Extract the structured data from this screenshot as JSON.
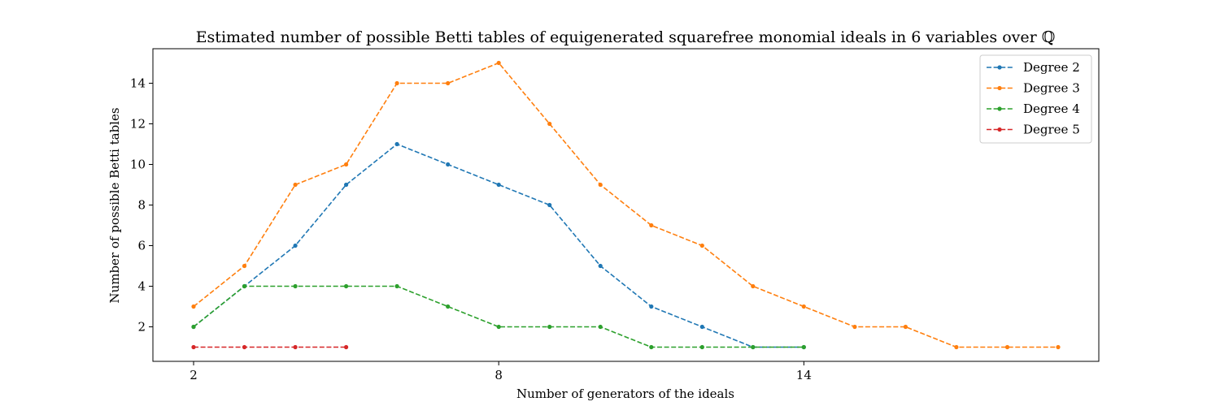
{
  "chart_data": {
    "type": "line",
    "title": "Estimated number of possible Betti tables of equigenerated squarefree monomial ideals in 6 variables over ℚ",
    "xlabel": "Number of generators of the ideals",
    "ylabel": "Number of possible Betti tables",
    "xlim": [
      1.2,
      19.8
    ],
    "ylim": [
      0.3,
      15.7
    ],
    "xticks": [
      2,
      8,
      14
    ],
    "yticks": [
      2,
      4,
      6,
      8,
      10,
      12,
      14
    ],
    "grid": false,
    "legend_position": "top-right",
    "line_style": "dashed",
    "series": [
      {
        "name": "Degree 2",
        "color": "#1f77b4",
        "x": [
          2,
          3,
          4,
          5,
          6,
          7,
          8,
          9,
          10,
          11,
          12,
          13,
          14
        ],
        "y": [
          2,
          4,
          6,
          9,
          11,
          10,
          9,
          8,
          5,
          3,
          2,
          1,
          1
        ]
      },
      {
        "name": "Degree 3",
        "color": "#ff7f0e",
        "x": [
          2,
          3,
          4,
          5,
          6,
          7,
          8,
          9,
          10,
          11,
          12,
          13,
          14,
          15,
          16,
          17,
          18,
          19
        ],
        "y": [
          3,
          5,
          9,
          10,
          14,
          14,
          15,
          12,
          9,
          7,
          6,
          4,
          3,
          2,
          2,
          1,
          1,
          1
        ]
      },
      {
        "name": "Degree 4",
        "color": "#2ca02c",
        "x": [
          2,
          3,
          4,
          5,
          6,
          7,
          8,
          9,
          10,
          11,
          12,
          13,
          14
        ],
        "y": [
          2,
          4,
          4,
          4,
          4,
          3,
          2,
          2,
          2,
          1,
          1,
          1,
          1
        ]
      },
      {
        "name": "Degree 5",
        "color": "#d62728",
        "x": [
          2,
          3,
          4,
          5
        ],
        "y": [
          1,
          1,
          1,
          1
        ]
      }
    ]
  }
}
